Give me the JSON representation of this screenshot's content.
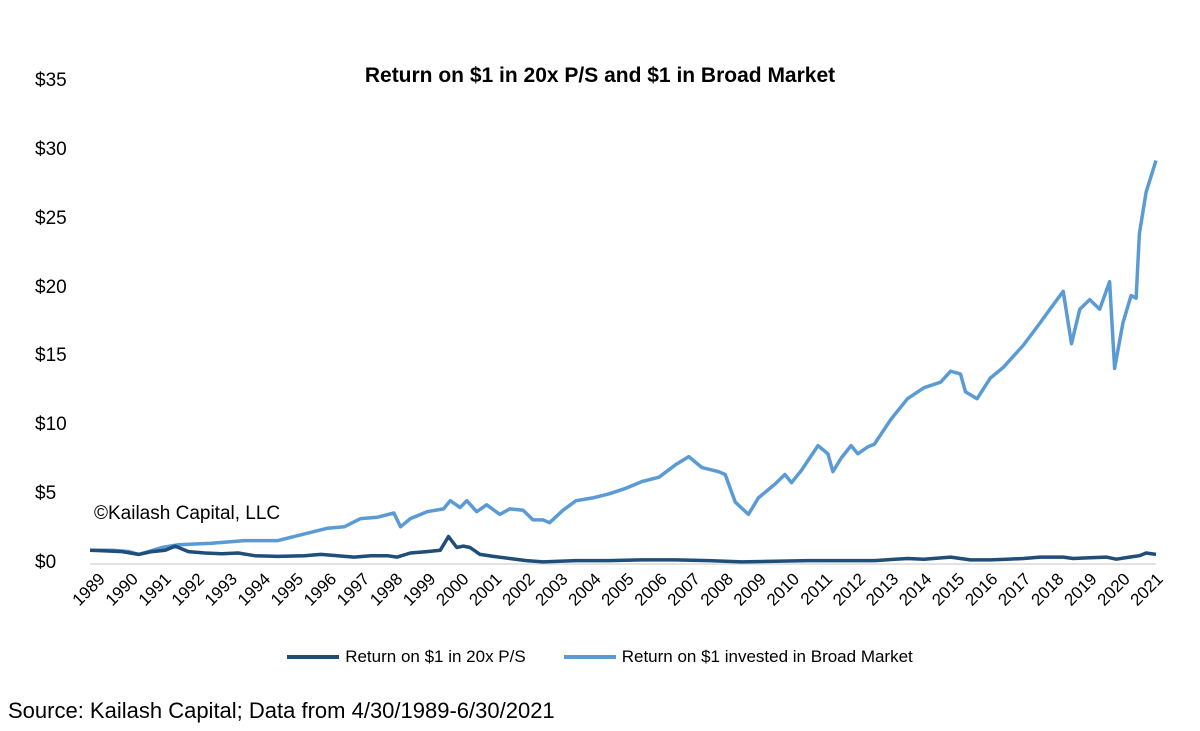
{
  "chart_data": {
    "type": "line",
    "title": "Return on $1 in 20x P/S and $1 in Broad Market",
    "xlabel": "",
    "ylabel": "",
    "xlim": [
      1989.33,
      2021.5
    ],
    "ylim": [
      0,
      35
    ],
    "y_ticks": [
      "$0",
      "$5",
      "$10",
      "$15",
      "$20",
      "$25",
      "$30",
      "$35"
    ],
    "x_ticks": [
      "1989",
      "1990",
      "1991",
      "1992",
      "1993",
      "1994",
      "1995",
      "1996",
      "1997",
      "1998",
      "1999",
      "2000",
      "2001",
      "2002",
      "2003",
      "2004",
      "2005",
      "2006",
      "2007",
      "2008",
      "2009",
      "2010",
      "2011",
      "2012",
      "2013",
      "2014",
      "2015",
      "2016",
      "2017",
      "2018",
      "2019",
      "2020",
      "2021"
    ],
    "grid": false,
    "legend_position": "bottom",
    "series": [
      {
        "name": "Return on $1 in 20x P/S",
        "color": "#1f4e79",
        "x": [
          1989.33,
          1989.8,
          1990.3,
          1990.8,
          1991.2,
          1991.6,
          1991.9,
          1992.3,
          1992.8,
          1993.3,
          1993.8,
          1994.3,
          1995.0,
          1995.8,
          1996.3,
          1996.8,
          1997.3,
          1997.8,
          1998.3,
          1998.6,
          1999.0,
          1999.5,
          1999.9,
          2000.15,
          2000.4,
          2000.6,
          2000.8,
          2001.1,
          2001.5,
          2002.0,
          2002.5,
          2003.0,
          2003.5,
          2004.0,
          2005.0,
          2006.0,
          2007.0,
          2008.0,
          2009.0,
          2010.0,
          2011.0,
          2012.0,
          2013.0,
          2014.0,
          2014.5,
          2015.3,
          2015.9,
          2016.5,
          2017.0,
          2017.5,
          2018.0,
          2018.7,
          2019.0,
          2019.5,
          2020.0,
          2020.3,
          2020.7,
          2021.0,
          2021.2,
          2021.5
        ],
        "values": [
          1.0,
          0.95,
          0.9,
          0.7,
          0.9,
          1.0,
          1.3,
          0.9,
          0.8,
          0.75,
          0.8,
          0.6,
          0.55,
          0.6,
          0.7,
          0.6,
          0.5,
          0.6,
          0.6,
          0.5,
          0.8,
          0.9,
          1.0,
          2.0,
          1.2,
          1.3,
          1.2,
          0.7,
          0.55,
          0.4,
          0.25,
          0.15,
          0.2,
          0.25,
          0.25,
          0.3,
          0.3,
          0.25,
          0.15,
          0.2,
          0.25,
          0.25,
          0.25,
          0.4,
          0.35,
          0.5,
          0.3,
          0.3,
          0.35,
          0.4,
          0.5,
          0.5,
          0.4,
          0.45,
          0.5,
          0.35,
          0.5,
          0.6,
          0.8,
          0.7
        ]
      },
      {
        "name": "Return on $1 invested in Broad Market",
        "color": "#5b9bd5",
        "x": [
          1989.33,
          1990.0,
          1990.5,
          1990.8,
          1991.5,
          1992.0,
          1993.0,
          1994.0,
          1995.0,
          1996.0,
          1996.5,
          1997.0,
          1997.5,
          1998.0,
          1998.5,
          1998.7,
          1999.0,
          1999.5,
          2000.0,
          2000.2,
          2000.5,
          2000.7,
          2001.0,
          2001.3,
          2001.7,
          2002.0,
          2002.4,
          2002.7,
          2003.0,
          2003.2,
          2003.6,
          2004.0,
          2004.5,
          2005.0,
          2005.5,
          2006.0,
          2006.5,
          2007.0,
          2007.4,
          2007.8,
          2008.3,
          2008.5,
          2008.8,
          2009.2,
          2009.5,
          2010.0,
          2010.3,
          2010.5,
          2010.8,
          2011.3,
          2011.6,
          2011.75,
          2012.0,
          2012.3,
          2012.5,
          2012.8,
          2013.0,
          2013.5,
          2014.0,
          2014.5,
          2015.0,
          2015.3,
          2015.6,
          2015.75,
          2016.1,
          2016.5,
          2016.9,
          2017.5,
          2018.0,
          2018.3,
          2018.7,
          2018.95,
          2019.2,
          2019.5,
          2019.8,
          2020.1,
          2020.25,
          2020.5,
          2020.75,
          2020.9,
          2021.0,
          2021.2,
          2021.5
        ],
        "values": [
          1.0,
          1.0,
          0.9,
          0.7,
          1.2,
          1.4,
          1.5,
          1.7,
          1.7,
          2.3,
          2.6,
          2.7,
          3.3,
          3.4,
          3.7,
          2.7,
          3.3,
          3.8,
          4.0,
          4.6,
          4.1,
          4.6,
          3.8,
          4.3,
          3.6,
          4.0,
          3.9,
          3.2,
          3.2,
          3.0,
          3.9,
          4.6,
          4.8,
          5.1,
          5.5,
          6.0,
          6.3,
          7.2,
          7.8,
          7.0,
          6.7,
          6.5,
          4.5,
          3.6,
          4.8,
          5.8,
          6.5,
          5.9,
          6.8,
          8.6,
          8.0,
          6.7,
          7.7,
          8.6,
          8.0,
          8.5,
          8.7,
          10.5,
          12.0,
          12.8,
          13.2,
          14.0,
          13.8,
          12.5,
          12.0,
          13.5,
          14.3,
          15.9,
          17.5,
          18.5,
          19.8,
          16.0,
          18.5,
          19.2,
          18.5,
          20.5,
          14.2,
          17.5,
          19.5,
          19.3,
          24.0,
          27.0,
          29.3
        ]
      }
    ]
  },
  "copyright": "©Kailash Capital, LLC",
  "source": "Source: Kailash Capital; Data from 4/30/1989-6/30/2021"
}
